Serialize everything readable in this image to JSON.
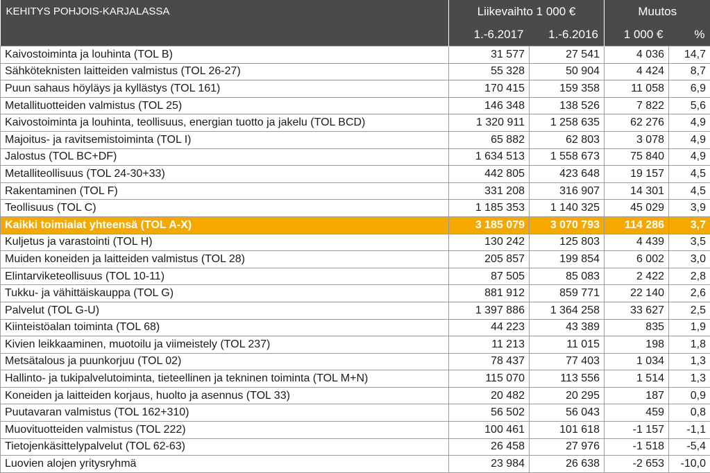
{
  "header": {
    "title": "KEHITYS POHJOIS-KARJALASSA",
    "group_revenue": "Liikevaihto 1 000 €",
    "group_change": "Muutos",
    "col_2017": "1.-6.2017",
    "col_2016": "1.-6.2016",
    "col_abs": "1 000 €",
    "col_pct": "%"
  },
  "colors": {
    "header_bg": "#4a4a4a",
    "highlight": "#f5a800"
  },
  "chart_data": {
    "type": "table",
    "title": "KEHITYS POHJOIS-KARJALASSA",
    "columns": [
      "1.-6.2017",
      "1.-6.2016",
      "1 000 €",
      "%"
    ],
    "highlight_row": "Kaikki toimialat yhteensä (TOL A-X)",
    "rows": [
      {
        "name": "Kaivostoiminta ja louhinta (TOL B)",
        "v2017": "31 577",
        "v2016": "27 541",
        "abs": "4 036",
        "pct": "14,7"
      },
      {
        "name": "Sähköteknisten laitteiden valmistus (TOL 26-27)",
        "v2017": "55 328",
        "v2016": "50 904",
        "abs": "4 424",
        "pct": "8,7"
      },
      {
        "name": "Puun sahaus höyläys ja kyllästys (TOL 161)",
        "v2017": "170 415",
        "v2016": "159 358",
        "abs": "11 058",
        "pct": "6,9"
      },
      {
        "name": "Metallituotteiden valmistus (TOL 25)",
        "v2017": "146 348",
        "v2016": "138 526",
        "abs": "7 822",
        "pct": "5,6"
      },
      {
        "name": "Kaivostoiminta ja louhinta, teollisuus, energian tuotto ja jakelu (TOL BCD)",
        "v2017": "1 320 911",
        "v2016": "1 258 635",
        "abs": "62 276",
        "pct": "4,9"
      },
      {
        "name": "Majoitus- ja ravitsemistoiminta (TOL I)",
        "v2017": "65 882",
        "v2016": "62 803",
        "abs": "3 078",
        "pct": "4,9"
      },
      {
        "name": "Jalostus (TOL BC+DF)",
        "v2017": "1 634 513",
        "v2016": "1 558 673",
        "abs": "75 840",
        "pct": "4,9"
      },
      {
        "name": "Metalliteollisuus (TOL 24-30+33)",
        "v2017": "442 805",
        "v2016": "423 648",
        "abs": "19 157",
        "pct": "4,5"
      },
      {
        "name": "Rakentaminen (TOL F)",
        "v2017": "331 208",
        "v2016": "316 907",
        "abs": "14 301",
        "pct": "4,5"
      },
      {
        "name": "Teollisuus (TOL C)",
        "v2017": "1 185 353",
        "v2016": "1 140 325",
        "abs": "45 029",
        "pct": "3,9"
      },
      {
        "name": "Kaikki toimialat yhteensä (TOL A-X)",
        "v2017": "3 185 079",
        "v2016": "3 070 793",
        "abs": "114 286",
        "pct": "3,7",
        "highlight": true
      },
      {
        "name": "Kuljetus ja varastointi (TOL H)",
        "v2017": "130 242",
        "v2016": "125 803",
        "abs": "4 439",
        "pct": "3,5"
      },
      {
        "name": "Muiden koneiden ja laitteiden valmistus (TOL 28)",
        "v2017": "205 857",
        "v2016": "199 854",
        "abs": "6 002",
        "pct": "3,0"
      },
      {
        "name": "Elintarviketeollisuus (TOL 10-11)",
        "v2017": "87 505",
        "v2016": "85 083",
        "abs": "2 422",
        "pct": "2,8"
      },
      {
        "name": "Tukku- ja vähittäiskauppa (TOL G)",
        "v2017": "881 912",
        "v2016": "859 771",
        "abs": "22 140",
        "pct": "2,6"
      },
      {
        "name": "Palvelut (TOL G-U)",
        "v2017": "1 397 886",
        "v2016": "1 364 258",
        "abs": "33 627",
        "pct": "2,5"
      },
      {
        "name": "Kiinteistöalan toiminta (TOL 68)",
        "v2017": "44 223",
        "v2016": "43 389",
        "abs": "835",
        "pct": "1,9"
      },
      {
        "name": "Kivien leikkaaminen, muotoilu ja viimeistely (TOL 237)",
        "v2017": "11 213",
        "v2016": "11 015",
        "abs": "198",
        "pct": "1,8"
      },
      {
        "name": "Metsätalous ja puunkorjuu (TOL 02)",
        "v2017": "78 437",
        "v2016": "77 403",
        "abs": "1 034",
        "pct": "1,3"
      },
      {
        "name": "Hallinto- ja tukipalvelutoiminta, tieteellinen ja tekninen toiminta (TOL M+N)",
        "v2017": "115 070",
        "v2016": "113 556",
        "abs": "1 514",
        "pct": "1,3"
      },
      {
        "name": "Koneiden ja laitteiden korjaus, huolto ja asennus (TOL 33)",
        "v2017": "20 482",
        "v2016": "20 295",
        "abs": "187",
        "pct": "0,9"
      },
      {
        "name": "Puutavaran valmistus (TOL 162+310)",
        "v2017": "56 502",
        "v2016": "56 043",
        "abs": "459",
        "pct": "0,8"
      },
      {
        "name": "Muovituotteiden valmistus (TOL 222)",
        "v2017": "100 461",
        "v2016": "101 618",
        "abs": "-1 157",
        "pct": "-1,1"
      },
      {
        "name": "Tietojenkäsittelypalvelut (TOL 62-63)",
        "v2017": "26 458",
        "v2016": "27 976",
        "abs": "-1 518",
        "pct": "-5,4"
      },
      {
        "name": "Luovien alojen yritysryhmä",
        "v2017": "23 984",
        "v2016": "26 638",
        "abs": "-2 653",
        "pct": "-10,0"
      }
    ]
  }
}
